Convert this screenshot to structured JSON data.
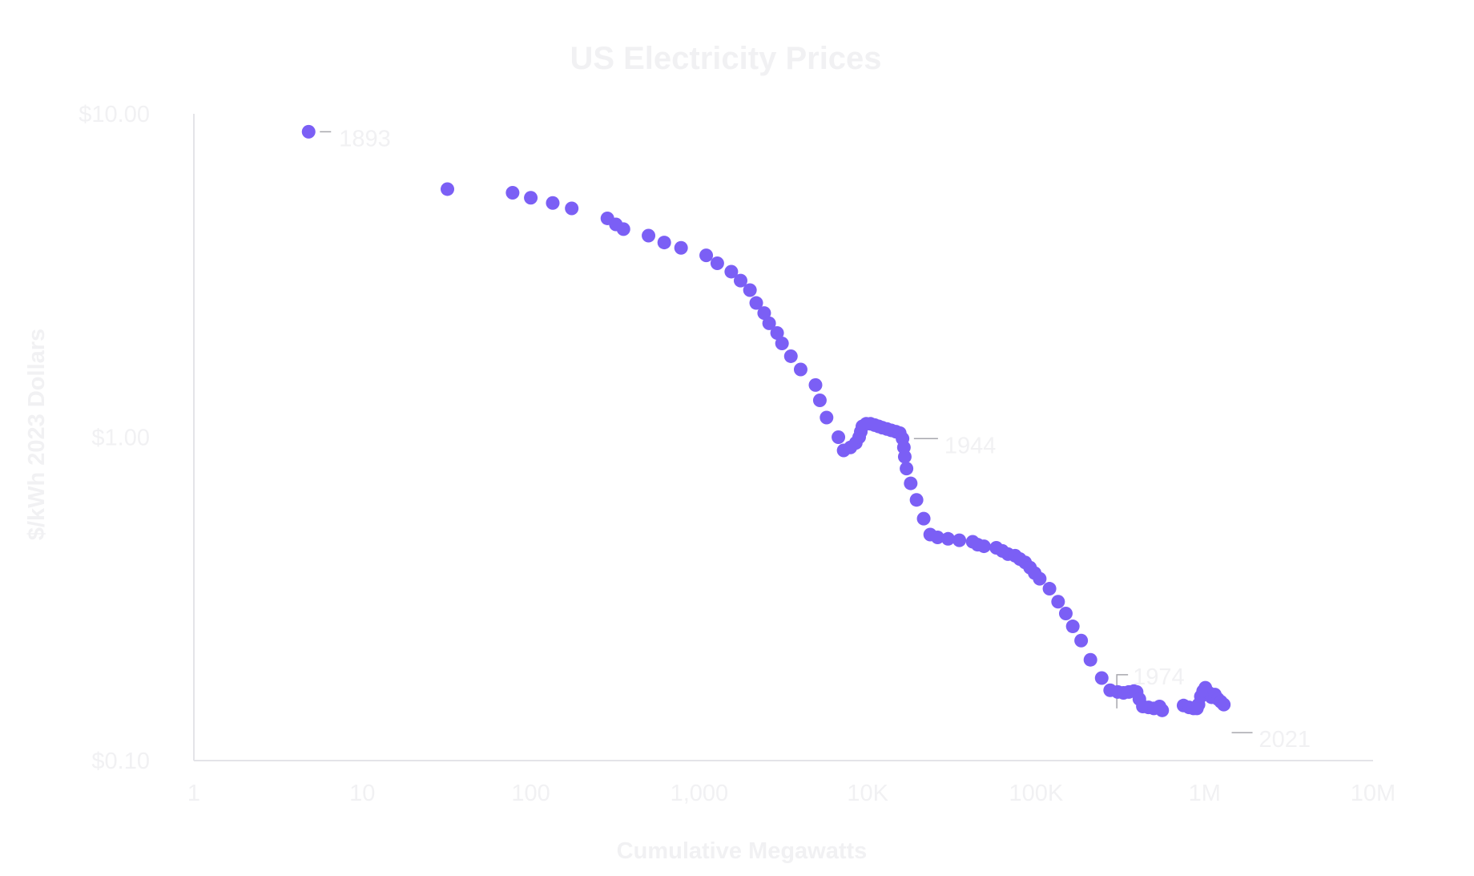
{
  "chart_data": {
    "type": "scatter",
    "title": "US Electricity Prices",
    "xlabel": "Cumulative Megawatts",
    "ylabel": "$/kWh 2023 Dollars",
    "x_scale": "log",
    "y_scale": "log",
    "xlim": [
      1,
      10000000
    ],
    "ylim": [
      0.1,
      10
    ],
    "grid": false,
    "legend": "none",
    "colors": {
      "points": "#7b5ff5",
      "text": "#f1f1f3",
      "axis": "#e4e4e8",
      "leader": "#a7a7ad"
    },
    "x_ticks": [
      {
        "value": 1,
        "label": "1"
      },
      {
        "value": 10,
        "label": "10"
      },
      {
        "value": 100,
        "label": "100"
      },
      {
        "value": 1000,
        "label": "1,000"
      },
      {
        "value": 10000,
        "label": "10K"
      },
      {
        "value": 100000,
        "label": "100K"
      },
      {
        "value": 1000000,
        "label": "1M"
      },
      {
        "value": 10000000,
        "label": "10M"
      }
    ],
    "y_ticks": [
      {
        "value": 10,
        "label": "$10.00"
      },
      {
        "value": 1,
        "label": "$1.00"
      },
      {
        "value": 0.1,
        "label": "$0.10"
      }
    ],
    "annotations": [
      {
        "label": "1893",
        "x": 4.8,
        "y": 8.8
      },
      {
        "label": "1944",
        "x": 16500,
        "y": 0.99
      },
      {
        "label": "1974",
        "x": 270000,
        "y": 0.145
      },
      {
        "label": "2021",
        "x": 1270000,
        "y": 0.122
      }
    ],
    "points": [
      [
        4.8,
        8.8
      ],
      [
        32,
        5.85
      ],
      [
        78,
        5.7
      ],
      [
        100,
        5.5
      ],
      [
        135,
        5.3
      ],
      [
        175,
        5.1
      ],
      [
        285,
        4.75
      ],
      [
        320,
        4.55
      ],
      [
        355,
        4.4
      ],
      [
        500,
        4.2
      ],
      [
        620,
        4.0
      ],
      [
        780,
        3.85
      ],
      [
        1100,
        3.65
      ],
      [
        1280,
        3.45
      ],
      [
        1550,
        3.25
      ],
      [
        1760,
        3.05
      ],
      [
        2000,
        2.85
      ],
      [
        2180,
        2.6
      ],
      [
        2430,
        2.42
      ],
      [
        2600,
        2.25
      ],
      [
        2900,
        2.1
      ],
      [
        3100,
        1.95
      ],
      [
        3500,
        1.78
      ],
      [
        4000,
        1.62
      ],
      [
        4900,
        1.45
      ],
      [
        5200,
        1.3
      ],
      [
        5700,
        1.15
      ],
      [
        6700,
        1.0
      ],
      [
        7200,
        0.91
      ],
      [
        7900,
        0.93
      ],
      [
        8500,
        0.96
      ],
      [
        8900,
        1.0
      ],
      [
        9100,
        1.04
      ],
      [
        9300,
        1.08
      ],
      [
        9800,
        1.1
      ],
      [
        10400,
        1.1
      ],
      [
        11000,
        1.09
      ],
      [
        11600,
        1.08
      ],
      [
        12200,
        1.07
      ],
      [
        13000,
        1.06
      ],
      [
        13800,
        1.05
      ],
      [
        14700,
        1.04
      ],
      [
        15500,
        1.03
      ],
      [
        16100,
        0.99
      ],
      [
        16400,
        0.93
      ],
      [
        16600,
        0.87
      ],
      [
        17000,
        0.8
      ],
      [
        18000,
        0.72
      ],
      [
        19500,
        0.64
      ],
      [
        21500,
        0.56
      ],
      [
        23500,
        0.5
      ],
      [
        26000,
        0.49
      ],
      [
        30000,
        0.485
      ],
      [
        35000,
        0.48
      ],
      [
        42000,
        0.475
      ],
      [
        45000,
        0.465
      ],
      [
        49000,
        0.46
      ],
      [
        58000,
        0.455
      ],
      [
        63000,
        0.445
      ],
      [
        68000,
        0.435
      ],
      [
        75000,
        0.43
      ],
      [
        80000,
        0.42
      ],
      [
        86000,
        0.41
      ],
      [
        92000,
        0.395
      ],
      [
        98000,
        0.38
      ],
      [
        105000,
        0.365
      ],
      [
        120000,
        0.34
      ],
      [
        135000,
        0.31
      ],
      [
        150000,
        0.285
      ],
      [
        165000,
        0.26
      ],
      [
        185000,
        0.235
      ],
      [
        210000,
        0.205
      ],
      [
        245000,
        0.18
      ],
      [
        275000,
        0.165
      ],
      [
        305000,
        0.163
      ],
      [
        330000,
        0.162
      ],
      [
        355000,
        0.163
      ],
      [
        380000,
        0.164
      ],
      [
        395000,
        0.163
      ],
      [
        410000,
        0.155
      ],
      [
        430000,
        0.147
      ],
      [
        465000,
        0.146
      ],
      [
        500000,
        0.145
      ],
      [
        540000,
        0.147
      ],
      [
        560000,
        0.143
      ],
      [
        750000,
        0.148
      ],
      [
        810000,
        0.146
      ],
      [
        860000,
        0.145
      ],
      [
        900000,
        0.145
      ],
      [
        920000,
        0.149
      ],
      [
        950000,
        0.158
      ],
      [
        980000,
        0.164
      ],
      [
        1010000,
        0.168
      ],
      [
        1060000,
        0.162
      ],
      [
        1100000,
        0.157
      ],
      [
        1150000,
        0.16
      ],
      [
        1200000,
        0.155
      ],
      [
        1250000,
        0.152
      ],
      [
        1300000,
        0.149
      ]
    ]
  }
}
